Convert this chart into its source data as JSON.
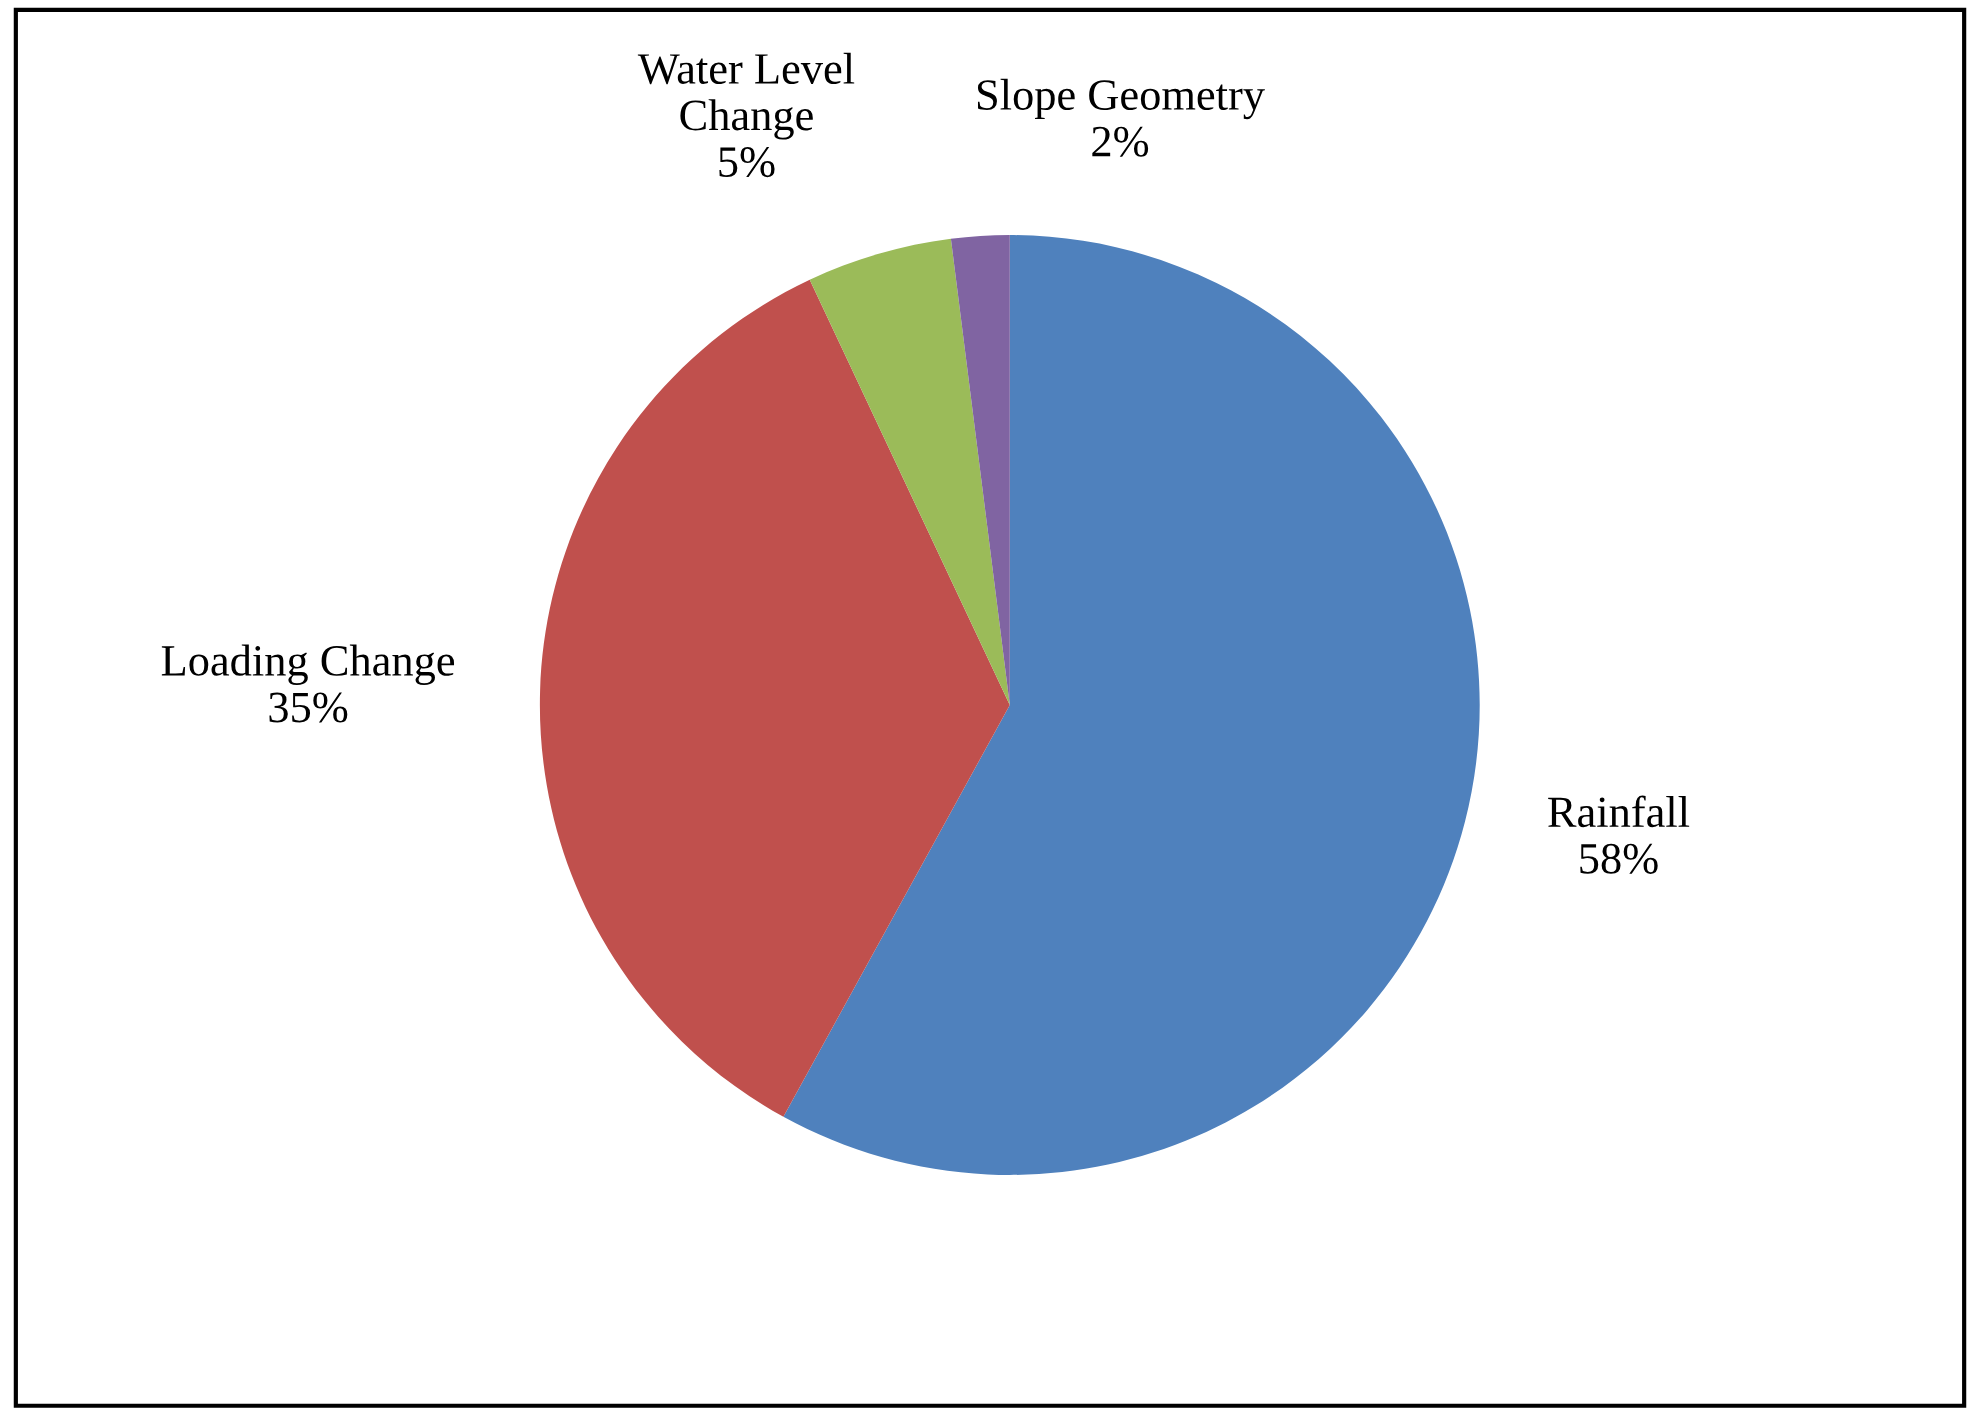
{
  "chart_data": {
    "type": "pie",
    "categories": [
      "Rainfall",
      "Loading Change",
      "Water Level\nChange",
      "Slope Geometry"
    ],
    "values": [
      58,
      35,
      5,
      2
    ],
    "value_labels": [
      "58%",
      "35%",
      "5%",
      "2%"
    ],
    "colors": [
      "#4f81bd",
      "#c0504d",
      "#9bbb59",
      "#8064a2"
    ],
    "legend": false
  }
}
